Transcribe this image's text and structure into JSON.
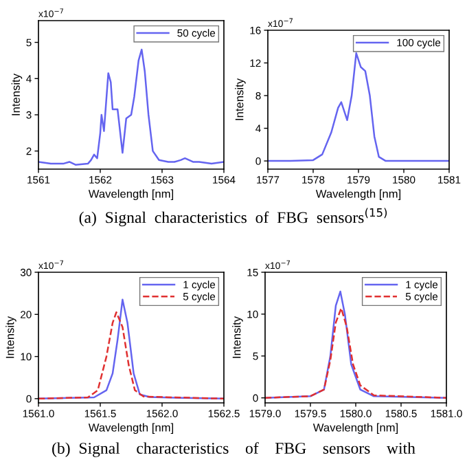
{
  "chart_data": [
    {
      "type": "line",
      "xlabel": "Wavelength [nm]",
      "ylabel": "Intensity",
      "annotations": [
        "x10$^{−7}$",
        "(a)  Signal  characteristics  of  FBG  sensors$^{(15)}$"
      ],
      "xlim": [
        1561,
        1564
      ],
      "xticks": [
        1561,
        1562,
        1563,
        1564
      ],
      "ylim": [
        1.5,
        5.6
      ],
      "yticks": [
        2,
        3,
        4,
        5
      ],
      "legend": "top right",
      "grid": false,
      "series": [
        {
          "name": "50 cycle",
          "color": "#6464f0",
          "line_style": "solid",
          "x": [
            1561,
            1561.2,
            1561.4,
            1561.5,
            1561.6,
            1561.8,
            1561.85,
            1561.9,
            1561.95,
            1562.0,
            1562.02,
            1562.06,
            1562.13,
            1562.17,
            1562.2,
            1562.28,
            1562.36,
            1562.42,
            1562.5,
            1562.55,
            1562.62,
            1562.67,
            1562.72,
            1562.78,
            1562.85,
            1562.95,
            1563.1,
            1563.2,
            1563.3,
            1563.37,
            1563.5,
            1563.6,
            1563.8,
            1564.0
          ],
          "values": [
            1.7,
            1.65,
            1.65,
            1.7,
            1.62,
            1.65,
            1.75,
            1.9,
            1.8,
            2.5,
            3.0,
            2.55,
            4.15,
            3.9,
            3.15,
            3.15,
            1.95,
            2.9,
            3.0,
            3.5,
            4.5,
            4.8,
            4.2,
            3.0,
            2.0,
            1.75,
            1.7,
            1.7,
            1.75,
            1.8,
            1.7,
            1.7,
            1.65,
            1.7
          ]
        }
      ]
    },
    {
      "type": "line",
      "xlabel": "Wavelength [nm]",
      "ylabel": "Intensity",
      "annotations": [
        "x10$^{−7}$"
      ],
      "xlim": [
        1577,
        1581
      ],
      "xticks": [
        1577,
        1578,
        1579,
        1580,
        1581
      ],
      "ylim": [
        -1,
        16
      ],
      "yticks": [
        0,
        4,
        8,
        12,
        16
      ],
      "legend": "top right",
      "grid": false,
      "series": [
        {
          "name": "100 cycle",
          "color": "#6464f0",
          "line_style": "solid",
          "x": [
            1577,
            1577.5,
            1578,
            1578.2,
            1578.4,
            1578.55,
            1578.62,
            1578.75,
            1578.85,
            1578.95,
            1579.05,
            1579.15,
            1579.25,
            1579.35,
            1579.45,
            1579.6,
            1580,
            1581
          ],
          "values": [
            0,
            0,
            0.1,
            0.8,
            3.5,
            6.5,
            7.2,
            5,
            8,
            13.2,
            11.5,
            11,
            8,
            3,
            0.5,
            0,
            0,
            0
          ]
        }
      ]
    },
    {
      "type": "line",
      "xlabel": "Wavelength [nm]",
      "ylabel": "Intensity",
      "annotations": [
        "x10$^{−7}$",
        "(b)  Signal    characteristics    of    FBG    sensors    with"
      ],
      "xlim": [
        1561.0,
        1562.5
      ],
      "xticks": [
        {
          "value": 1561.0,
          "label": "1561.0"
        },
        {
          "value": 1561.5,
          "label": "1561.5"
        },
        {
          "value": 1562.0,
          "label": "1562.0"
        },
        {
          "value": 1562.5,
          "label": "1562.5"
        }
      ],
      "ylim": [
        -1,
        30
      ],
      "yticks": [
        0,
        10,
        20,
        30
      ],
      "legend": "top right",
      "grid": false,
      "series": [
        {
          "name": "1 cycle",
          "color": "#6464f0",
          "line_style": "solid",
          "x": [
            1561.0,
            1561.45,
            1561.55,
            1561.6,
            1561.64,
            1561.68,
            1561.72,
            1561.77,
            1561.82,
            1561.9,
            1562.0,
            1562.5
          ],
          "values": [
            0,
            0.3,
            2,
            6,
            14,
            23.5,
            18,
            6,
            1,
            0.4,
            0.3,
            0
          ]
        },
        {
          "name": "5 cycle",
          "color": "#e03030",
          "line_style": "dashed",
          "x": [
            1561.0,
            1561.4,
            1561.48,
            1561.55,
            1561.6,
            1561.63,
            1561.68,
            1561.73,
            1561.78,
            1561.85,
            1562.5
          ],
          "values": [
            0,
            0.3,
            2,
            10,
            18,
            20.5,
            17,
            8,
            2,
            0.5,
            0
          ]
        }
      ]
    },
    {
      "type": "line",
      "xlabel": "Wavelength [nm]",
      "ylabel": "Intensity",
      "annotations": [
        "x10$^{−7}$"
      ],
      "xlim": [
        1579.0,
        1581.0
      ],
      "xticks": [
        {
          "value": 1579.0,
          "label": "1579.0"
        },
        {
          "value": 1579.5,
          "label": "1579.5"
        },
        {
          "value": 1580.0,
          "label": "1580.0"
        },
        {
          "value": 1580.5,
          "label": "1580.5"
        },
        {
          "value": 1581.0,
          "label": "1581.0"
        }
      ],
      "ylim": [
        -0.6,
        15
      ],
      "yticks": [
        0,
        5,
        10,
        15
      ],
      "legend": "top right",
      "grid": false,
      "series": [
        {
          "name": "1 cycle",
          "color": "#6464f0",
          "line_style": "solid",
          "x": [
            1579.0,
            1579.5,
            1579.65,
            1579.72,
            1579.78,
            1579.83,
            1579.88,
            1579.95,
            1580.05,
            1580.2,
            1581.0
          ],
          "values": [
            0,
            0.2,
            1,
            5,
            11,
            12.7,
            10,
            4,
            1,
            0.2,
            0
          ]
        },
        {
          "name": "5 cycle",
          "color": "#e03030",
          "line_style": "dashed",
          "x": [
            1579.0,
            1579.5,
            1579.65,
            1579.72,
            1579.78,
            1579.84,
            1579.9,
            1579.97,
            1580.05,
            1580.2,
            1581.0
          ],
          "values": [
            0,
            0.2,
            1,
            4.5,
            9,
            10.7,
            8.5,
            4,
            1.5,
            0.3,
            0
          ]
        }
      ]
    }
  ]
}
